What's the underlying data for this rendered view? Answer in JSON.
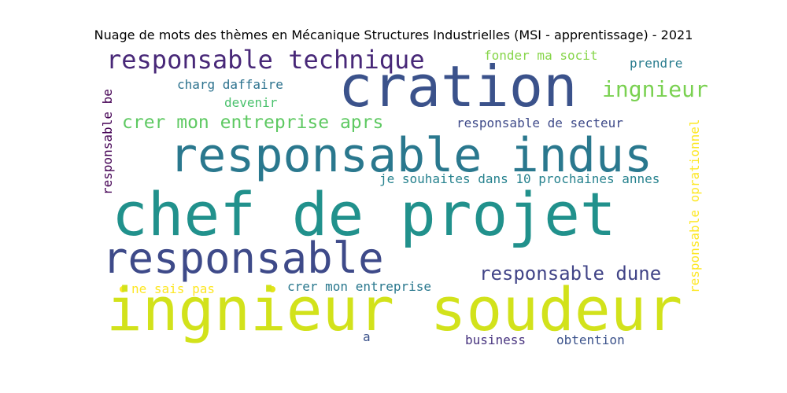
{
  "title": "Nuage de mots des thèmes en Mécanique Structures Industrielles (MSI - apprentissage) - 2021",
  "words": {
    "ingnieur_soudeur": "ingnieur soudeur",
    "chef_de_projet": "chef de projet",
    "cration": "cration",
    "responsable_indus": "responsable indus",
    "responsable": "responsable",
    "responsable_technique": "responsable technique",
    "crer_mon_entreprise_aprs": "crer mon entreprise aprs",
    "ingnieur": "ingnieur",
    "responsable_dune": "responsable dune",
    "responsable_de_secteur": "responsable de secteur",
    "je_souhaites": "je souhaites dans 10 prochaines annes",
    "charg_daffaire": "charg daffaire",
    "devenir": "devenir",
    "fonder_ma_socit": "fonder ma socit",
    "prendre": "prendre",
    "responsable_be": "responsable be",
    "responsable_oprationnel": "responsable oprationnel",
    "ne_sais_pas": "ne sais pas",
    "crer_mon_entreprise": "crer mon entreprise",
    "a": "a",
    "business": "business",
    "obtention": "obtention"
  },
  "colors": {
    "ingnieur_soudeur": "#d2e21b",
    "chef_de_projet": "#21918c",
    "cration": "#3b528b",
    "responsable_indus": "#2a788e",
    "responsable": "#3e4a89",
    "responsable_technique": "#482878",
    "crer_mon_entreprise_aprs": "#5ec962",
    "ingnieur": "#7ad151",
    "responsable_dune": "#414487",
    "responsable_de_secteur": "#3e4a89",
    "je_souhaites": "#26828e",
    "charg_daffaire": "#2c728e",
    "devenir": "#4ac16d",
    "fonder_ma_socit": "#86d549",
    "prendre": "#287c8e",
    "responsable_be": "#440154",
    "responsable_oprationnel": "#fde725",
    "ne_sais_pas": "#fde725",
    "crer_mon_entreprise": "#2a788e",
    "a": "#3b528b",
    "business": "#46327e",
    "obtention": "#3b528b",
    "dot_left": "#fde725",
    "dot_mid": "#e5e419"
  }
}
